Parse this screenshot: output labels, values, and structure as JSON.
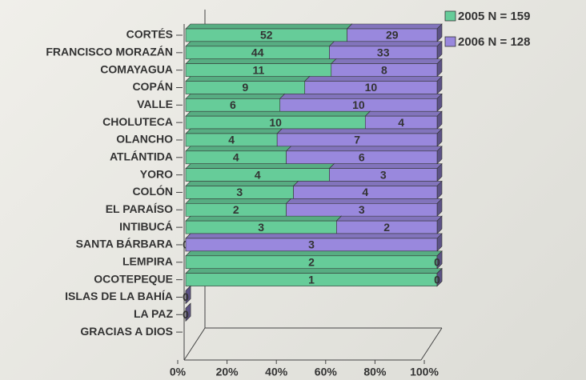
{
  "chart_data": {
    "type": "bar_stacked_percent_horizontal",
    "categories": [
      "CORTÉS",
      "FRANCISCO MORAZÁN",
      "COMAYAGUA",
      "COPÁN",
      "VALLE",
      "CHOLUTECA",
      "OLANCHO",
      "ATLÁNTIDA",
      "YORO",
      "COLÓN",
      "EL PARAÍSO",
      "INTIBUCÁ",
      "SANTA BÁRBARA",
      "LEMPIRA",
      "OCOTEPEQUE",
      "ISLAS DE LA BAHÍA",
      "LA PAZ",
      "GRACIAS A DIOS"
    ],
    "series": [
      {
        "name": "2005 N = 159",
        "color": "#66cc99",
        "values": [
          52,
          44,
          11,
          9,
          6,
          10,
          4,
          4,
          4,
          3,
          2,
          3,
          0,
          2,
          1,
          0,
          0,
          null
        ]
      },
      {
        "name": "2006 N = 128",
        "color": "#9988dd",
        "values": [
          29,
          33,
          8,
          10,
          10,
          4,
          7,
          6,
          3,
          4,
          3,
          2,
          3,
          0,
          0,
          0,
          0,
          null
        ]
      }
    ],
    "xlim": [
      0,
      100
    ],
    "xticks": [
      {
        "value": 0,
        "label": "0%"
      },
      {
        "value": 20,
        "label": "20%"
      },
      {
        "value": 40,
        "label": "40%"
      },
      {
        "value": 60,
        "label": "60%"
      },
      {
        "value": 80,
        "label": "80%"
      },
      {
        "value": 100,
        "label": "100%"
      }
    ],
    "legend": "top-right"
  }
}
